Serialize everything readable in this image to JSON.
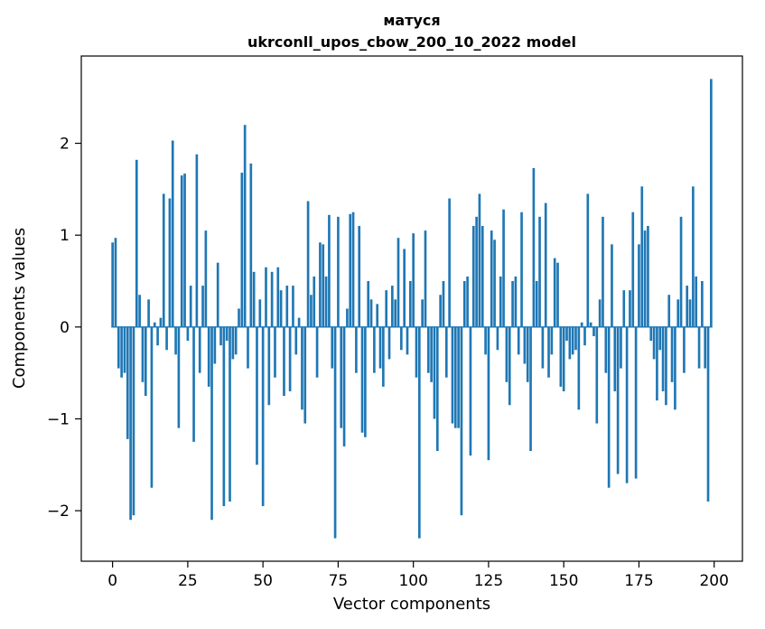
{
  "chart_data": {
    "type": "bar",
    "title": "матуся",
    "subtitle": "ukrconll_upos_cbow_200_10_2022 model",
    "xlabel": "Vector components",
    "ylabel": "Components values",
    "bar_color": "#1f77b4",
    "axis_color": "#000000",
    "background_color": "#ffffff",
    "xlim": [
      -10.4,
      209.4
    ],
    "ylim": [
      -2.55,
      2.95
    ],
    "xticks": [
      0,
      25,
      50,
      75,
      100,
      125,
      150,
      175,
      200
    ],
    "yticks": [
      -2,
      -1,
      0,
      1,
      2
    ],
    "x_start": 0,
    "grid": false,
    "legend": "none",
    "values": [
      0.92,
      0.97,
      -0.45,
      -0.55,
      -0.5,
      -1.22,
      -2.1,
      -2.05,
      1.82,
      0.35,
      -0.6,
      -0.75,
      0.3,
      -1.75,
      0.05,
      -0.2,
      0.1,
      1.45,
      -0.25,
      1.4,
      2.03,
      -0.3,
      -1.1,
      1.65,
      1.67,
      -0.15,
      0.45,
      -1.25,
      1.88,
      -0.5,
      0.45,
      1.05,
      -0.65,
      -2.1,
      -0.4,
      0.7,
      -0.2,
      -1.95,
      -0.15,
      -1.9,
      -0.35,
      -0.3,
      0.2,
      1.68,
      2.2,
      -0.45,
      1.78,
      0.6,
      -1.5,
      0.3,
      -1.95,
      0.65,
      -0.85,
      0.6,
      -0.55,
      0.65,
      0.4,
      -0.75,
      0.45,
      -0.7,
      0.45,
      -0.3,
      0.1,
      -0.9,
      -1.05,
      1.37,
      0.35,
      0.55,
      -0.55,
      0.92,
      0.9,
      0.55,
      1.22,
      -0.45,
      -2.3,
      1.2,
      -1.1,
      -1.3,
      0.2,
      1.23,
      1.25,
      -0.5,
      1.1,
      -1.15,
      -1.2,
      0.5,
      0.3,
      -0.5,
      0.25,
      -0.45,
      -0.65,
      0.4,
      -0.35,
      0.45,
      0.3,
      0.97,
      -0.25,
      0.85,
      -0.3,
      0.5,
      1.02,
      -0.55,
      -2.3,
      0.3,
      1.05,
      -0.5,
      -0.6,
      -1.0,
      -1.35,
      0.35,
      0.5,
      -0.55,
      1.4,
      -1.05,
      -1.1,
      -1.1,
      -2.05,
      0.5,
      0.55,
      -1.4,
      1.1,
      1.2,
      1.45,
      1.1,
      -0.3,
      -1.45,
      1.05,
      0.95,
      -0.25,
      0.55,
      1.28,
      -0.6,
      -0.85,
      0.5,
      0.55,
      -0.3,
      1.25,
      -0.4,
      -0.6,
      -1.35,
      1.73,
      0.5,
      1.2,
      -0.45,
      1.35,
      -0.55,
      -0.3,
      0.75,
      0.7,
      -0.65,
      -0.7,
      -0.15,
      -0.35,
      -0.3,
      -0.25,
      -0.9,
      0.05,
      -0.2,
      1.45,
      0.05,
      -0.1,
      -1.05,
      0.3,
      1.2,
      -0.5,
      -1.75,
      0.9,
      -0.7,
      -1.6,
      -0.45,
      0.4,
      -1.7,
      0.4,
      1.25,
      -1.65,
      0.9,
      1.53,
      1.05,
      1.1,
      -0.15,
      -0.35,
      -0.8,
      -0.25,
      -0.7,
      -0.85,
      0.35,
      -0.6,
      -0.9,
      0.3,
      1.2,
      -0.5,
      0.45,
      0.3,
      1.53,
      0.55,
      -0.45,
      0.5,
      -0.45,
      -1.9,
      2.7
    ]
  }
}
